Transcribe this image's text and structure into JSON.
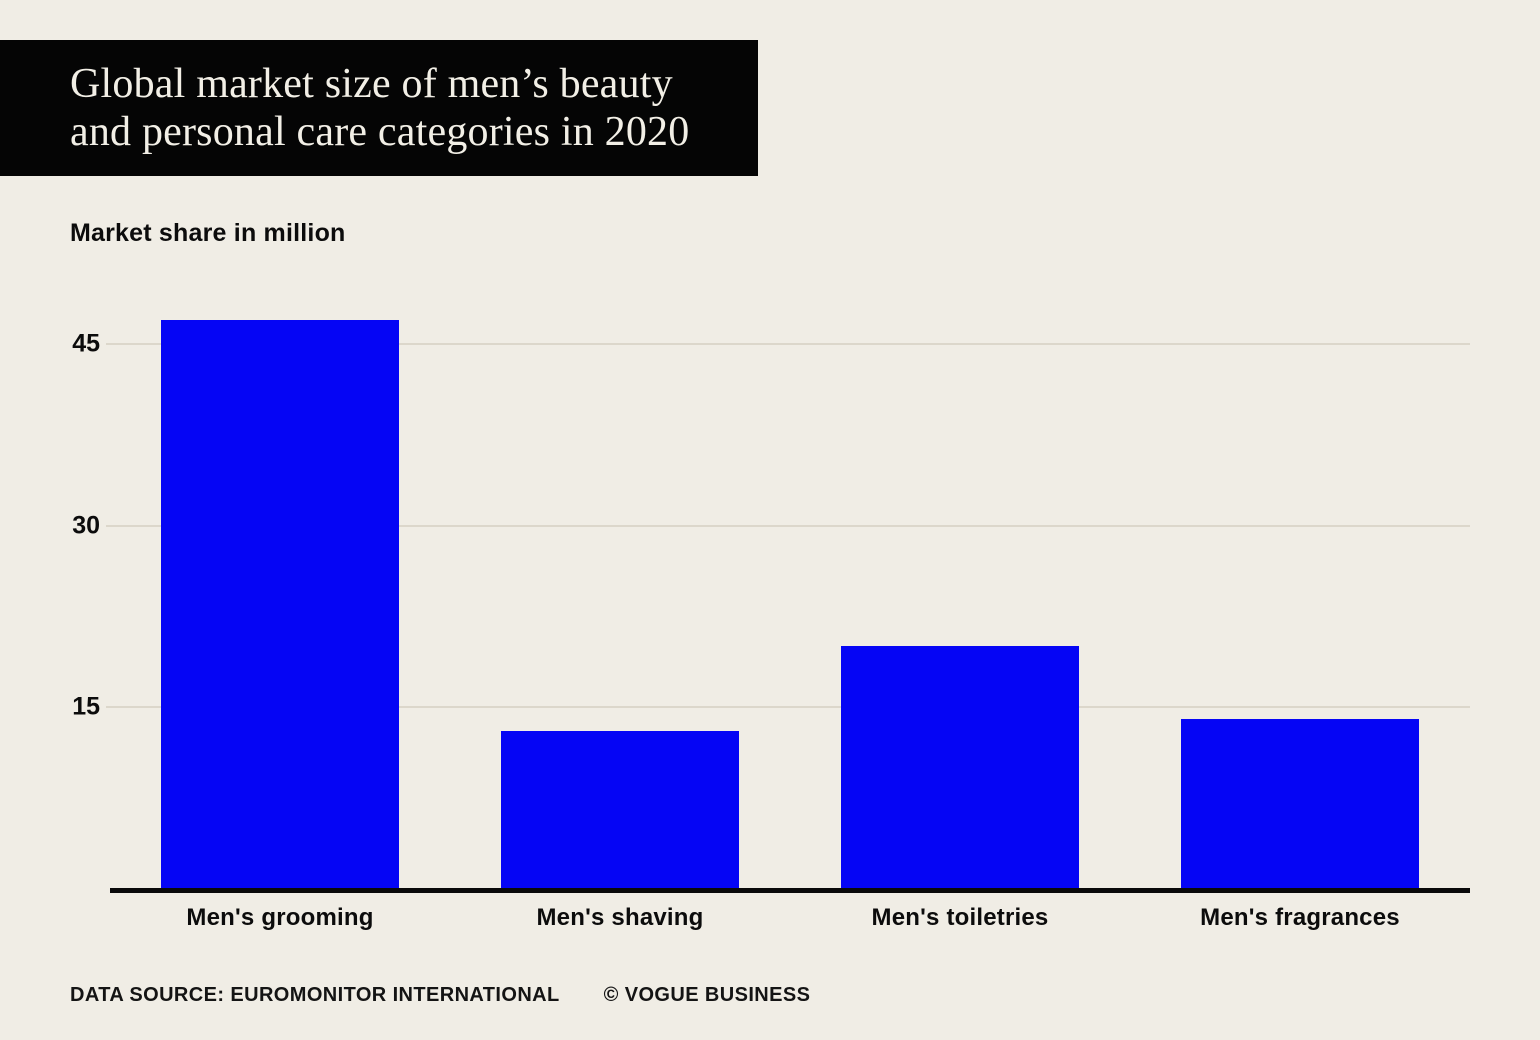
{
  "header": {
    "title_line1": "Global market size of men’s beauty",
    "title_line2": "and personal care categories in 2020"
  },
  "subtitle": "Market share in million",
  "chart_data": {
    "type": "bar",
    "title": "Global market size of men’s beauty and personal care categories in 2020",
    "categories": [
      "Men's grooming",
      "Men's shaving",
      "Men's toiletries",
      "Men's fragrances"
    ],
    "values": [
      47,
      13,
      20,
      14
    ],
    "xlabel": "",
    "ylabel": "Market share in million",
    "yticks": [
      15,
      30,
      45
    ],
    "ylim": [
      0,
      49
    ],
    "grid": true,
    "legend": "none",
    "bar_color": "#0505f5",
    "background_color": "#f0ede5",
    "gridline_color": "#dcd7cb",
    "axis_color": "#0a0a0a"
  },
  "footer": {
    "source": "DATA SOURCE: EUROMONITOR INTERNATIONAL",
    "credit": "© VOGUE BUSINESS"
  }
}
